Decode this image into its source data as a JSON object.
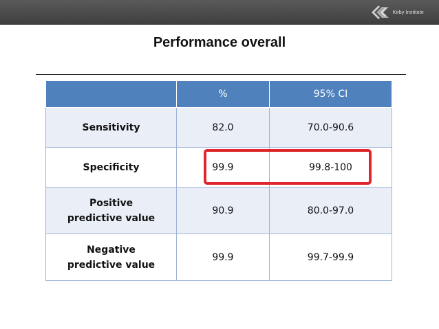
{
  "header": {
    "logo_text": "Kirby Institute"
  },
  "slide": {
    "title": "Performance overall"
  },
  "table": {
    "columns": [
      "",
      "%",
      "95% CI"
    ],
    "rows": [
      {
        "label": "Sensitivity",
        "percent": "82.0",
        "ci": "70.0-90.6"
      },
      {
        "label": "Specificity",
        "percent": "99.9",
        "ci": "99.8-100"
      },
      {
        "label": "Positive predictive value",
        "percent": "90.9",
        "ci": "80.0-97.0"
      },
      {
        "label": "Negative predictive value",
        "percent": "99.9",
        "ci": "99.7-99.9"
      }
    ]
  },
  "colors": {
    "header_bar": "#4a4a4a",
    "table_header": "#4f81bd",
    "row_band": "#e9eef7",
    "highlight": "#e1262b"
  }
}
